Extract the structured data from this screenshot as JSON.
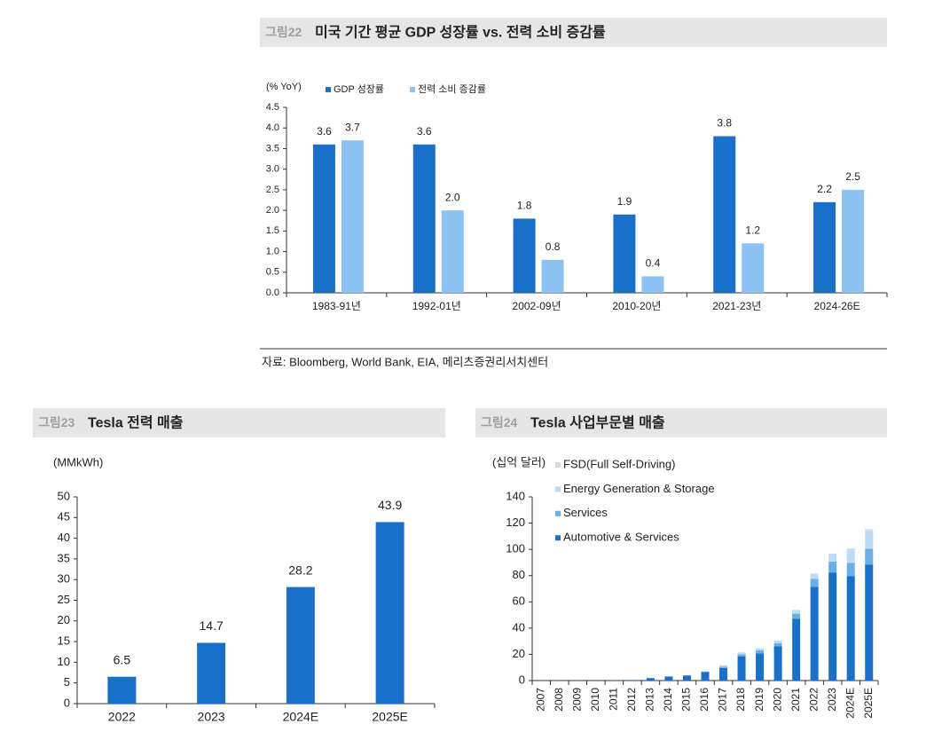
{
  "chart_data": [
    {
      "type": "bar",
      "figure_label": "그림22",
      "title": "미국 기간 평균 GDP 성장률 vs. 전력 소비 증감률",
      "unit_label": "(% YoY)",
      "categories": [
        "1983-91년",
        "1992-01년",
        "2002-09년",
        "2010-20년",
        "2021-23년",
        "2024-26E"
      ],
      "series": [
        {
          "name": "GDP 성장률",
          "color": "#1a6fc9",
          "values": [
            3.6,
            3.6,
            1.8,
            1.9,
            3.8,
            2.2
          ],
          "value_labels": [
            "3.6",
            "3.6",
            "1.8",
            "1.9",
            "3.8",
            "2.2"
          ]
        },
        {
          "name": "전력 소비 증감률",
          "color": "#8cc3f2",
          "values": [
            3.7,
            2.0,
            0.8,
            0.4,
            1.2,
            2.5
          ],
          "value_labels": [
            "3.7",
            "2.0",
            "0.8",
            "0.4",
            "1.2",
            "2.5"
          ]
        }
      ],
      "ylim": [
        0,
        4.5
      ],
      "yticks": [
        {
          "value": 0,
          "label": "0.0"
        },
        0.5,
        {
          "value": 1,
          "label": "1.0"
        },
        1.5,
        {
          "value": 2,
          "label": "2.0"
        },
        2.5,
        {
          "value": 3,
          "label": "3.0"
        },
        3.5,
        {
          "value": 4,
          "label": "4.0"
        },
        4.5
      ],
      "legend": "top-left",
      "source": "자료: Bloomberg, World Bank, EIA, 메리츠증권리서치센터"
    },
    {
      "type": "bar",
      "figure_label": "그림23",
      "title": "Tesla 전력 매출",
      "unit_label": "(MMkWh)",
      "categories": [
        "2022",
        "2023",
        "2024E",
        "2025E"
      ],
      "series": [
        {
          "color": "#1a6fc9",
          "values": [
            6.5,
            14.7,
            28.2,
            43.9
          ]
        }
      ],
      "ylim": [
        0,
        50
      ],
      "yticks": [
        0,
        5,
        10,
        15,
        20,
        25,
        30,
        35,
        40,
        45,
        50
      ]
    },
    {
      "type": "stacked-bar",
      "figure_label": "그림24",
      "title": "Tesla 사업부문별 매출",
      "unit_label": "(십억 달러)",
      "categories": [
        "2007",
        "2008",
        "2009",
        "2010",
        "2011",
        "2012",
        "2013",
        "2014",
        "2015",
        "2016",
        "2017",
        "2018",
        "2019",
        "2020",
        "2021",
        "2022",
        "2023",
        "2024E",
        "2025E"
      ],
      "series": [
        {
          "name": "Automotive & Services",
          "color": "#1a6fc9",
          "values": [
            0.1,
            0.1,
            0.1,
            0.1,
            0.2,
            0.4,
            1.9,
            3.0,
            3.7,
            6.4,
            9.6,
            18.5,
            20.8,
            26.2,
            47.2,
            71.5,
            82.4,
            79.5,
            88.5
          ]
        },
        {
          "name": "Services",
          "color": "#6aaee8",
          "values": [
            0,
            0,
            0,
            0,
            0,
            0,
            0.1,
            0.2,
            0.3,
            0.5,
            1.0,
            1.4,
            2.2,
            2.3,
            3.8,
            6.1,
            8.3,
            10.3,
            12
          ]
        },
        {
          "name": "Energy Generation & Storage",
          "color": "#bcdcf5",
          "values": [
            0,
            0,
            0,
            0,
            0,
            0,
            0,
            0,
            0,
            0.2,
            1.1,
            1.6,
            1.5,
            2.0,
            2.8,
            3.9,
            6.0,
            10.5,
            14
          ]
        },
        {
          "name": "FSD(Full Self-Driving)",
          "color": "#d9d9d9",
          "values": [
            0,
            0,
            0,
            0,
            0,
            0,
            0,
            0,
            0,
            0,
            0,
            0,
            0,
            0,
            0,
            0,
            0,
            0.5,
            1.0
          ]
        }
      ],
      "ylim": [
        0,
        140
      ],
      "yticks": [
        0,
        20,
        40,
        60,
        80,
        100,
        120,
        140
      ],
      "legend": "top-left"
    }
  ]
}
